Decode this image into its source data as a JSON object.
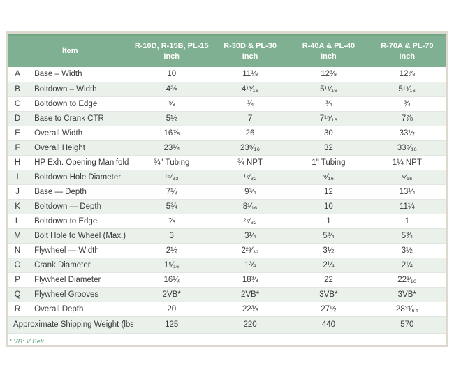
{
  "colors": {
    "header_green": "#7fb091",
    "header_green_dark": "#6fa883",
    "stripe_green": "#e9f1ea",
    "frame_border": "#ddd9d0",
    "footnote_green": "#63a580"
  },
  "table": {
    "columns": [
      {
        "label": "Item",
        "sublabel": ""
      },
      {
        "label": "R-10D, R-15B, PL-15",
        "sublabel": "Inch"
      },
      {
        "label": "R-30D & PL-30",
        "sublabel": "Inch"
      },
      {
        "label": "R-40A & PL-40",
        "sublabel": "Inch"
      },
      {
        "label": "R-70A & PL-70",
        "sublabel": "Inch"
      }
    ],
    "rows": [
      {
        "key": "A",
        "item": "Base – Width",
        "values": [
          "10",
          "11⅛",
          "12⅜",
          "12⅞"
        ]
      },
      {
        "key": "B",
        "item": "Boltdown – Width",
        "values": [
          "4⅜",
          "4¹³⁄₁₆",
          "5¹¹⁄₁₆",
          "5¹³⁄₁₆"
        ]
      },
      {
        "key": "C",
        "item": "Boltdown to Edge",
        "values": [
          "⅝",
          "¾",
          "¾",
          "¾"
        ]
      },
      {
        "key": "D",
        "item": "Base to Crank CTR",
        "values": [
          "5½",
          "7",
          "7¹⁵⁄₁₆",
          "7⅞"
        ]
      },
      {
        "key": "E",
        "item": "Overall Width",
        "values": [
          "16⅞",
          "26",
          "30",
          "33½"
        ]
      },
      {
        "key": "F",
        "item": "Overall Height",
        "values": [
          "23¼",
          "23⁹⁄₁₆",
          "32",
          "33⁹⁄₁₆"
        ]
      },
      {
        "key": "H",
        "item": "HP Exh. Opening Manifold",
        "values": [
          "¾\" Tubing",
          "¾ NPT",
          "1\" Tubing",
          "1¼ NPT"
        ]
      },
      {
        "key": "I",
        "item": "Boltdown Hole Diameter",
        "values": [
          "¹⁵⁄₃₂",
          "¹⁷⁄₃₂",
          "⁹⁄₁₆",
          "⁹⁄₁₆"
        ]
      },
      {
        "key": "J",
        "item": "Base — Depth",
        "values": [
          "7½",
          "9¾",
          "12",
          "13¼"
        ]
      },
      {
        "key": "K",
        "item": "Boltdown — Depth",
        "values": [
          "5¾",
          "8¹⁄₁₆",
          "10",
          "11¼"
        ]
      },
      {
        "key": "L",
        "item": "Boltdown to Edge",
        "values": [
          "⅞",
          "²⁷⁄₃₂",
          "1",
          "1"
        ]
      },
      {
        "key": "M",
        "item": "Bolt Hole to Wheel (Max.)",
        "values": [
          "3",
          "3¼",
          "5¾",
          "5¾"
        ]
      },
      {
        "key": "N",
        "item": "Flywheel — Width",
        "values": [
          "2½",
          "2²³⁄₃₂",
          "3½",
          "3½"
        ]
      },
      {
        "key": "O",
        "item": "Crank Diameter",
        "values": [
          "1⁵⁄₁₆",
          "1¾",
          "2¼",
          "2¼"
        ]
      },
      {
        "key": "P",
        "item": "Flywheel Diameter",
        "values": [
          "16½",
          "18⅜",
          "22",
          "22³⁄₁₆"
        ]
      },
      {
        "key": "Q",
        "item": "Flywheel Grooves",
        "values": [
          "2VB*",
          "2VB*",
          "3VB*",
          "3VB*"
        ]
      },
      {
        "key": "R",
        "item": "Overall Depth",
        "values": [
          "20",
          "22⅜",
          "27½",
          "28³³⁄₆₄"
        ]
      }
    ],
    "footer_row": {
      "label": "Approximate Shipping Weight (lbs.)",
      "values": [
        "125",
        "220",
        "440",
        "570"
      ]
    },
    "footnote": "* VB: V Belt"
  }
}
